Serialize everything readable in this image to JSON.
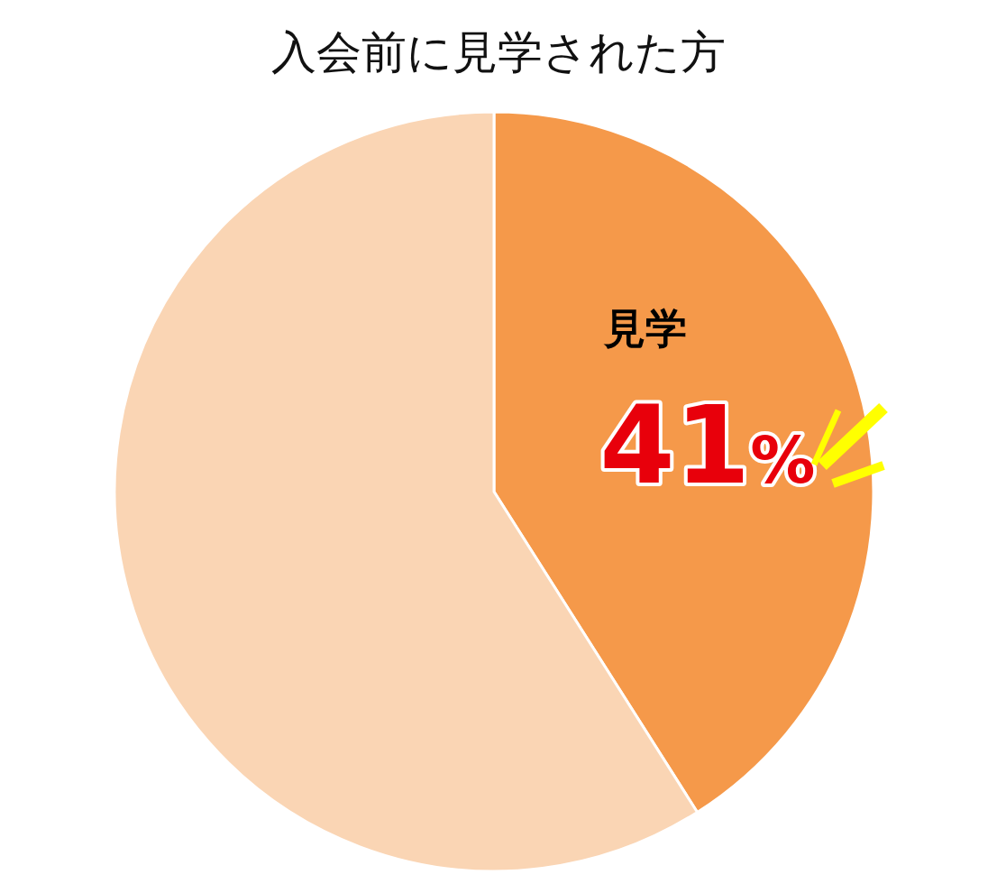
{
  "chart_data": {
    "type": "pie",
    "title": "入会前に見学された方",
    "categories": [
      "見学",
      null
    ],
    "values": [
      41,
      59
    ],
    "colors": [
      "#f5994a",
      "#fad5b4"
    ],
    "value_labels": [
      "41%",
      null
    ],
    "legend": false
  }
}
